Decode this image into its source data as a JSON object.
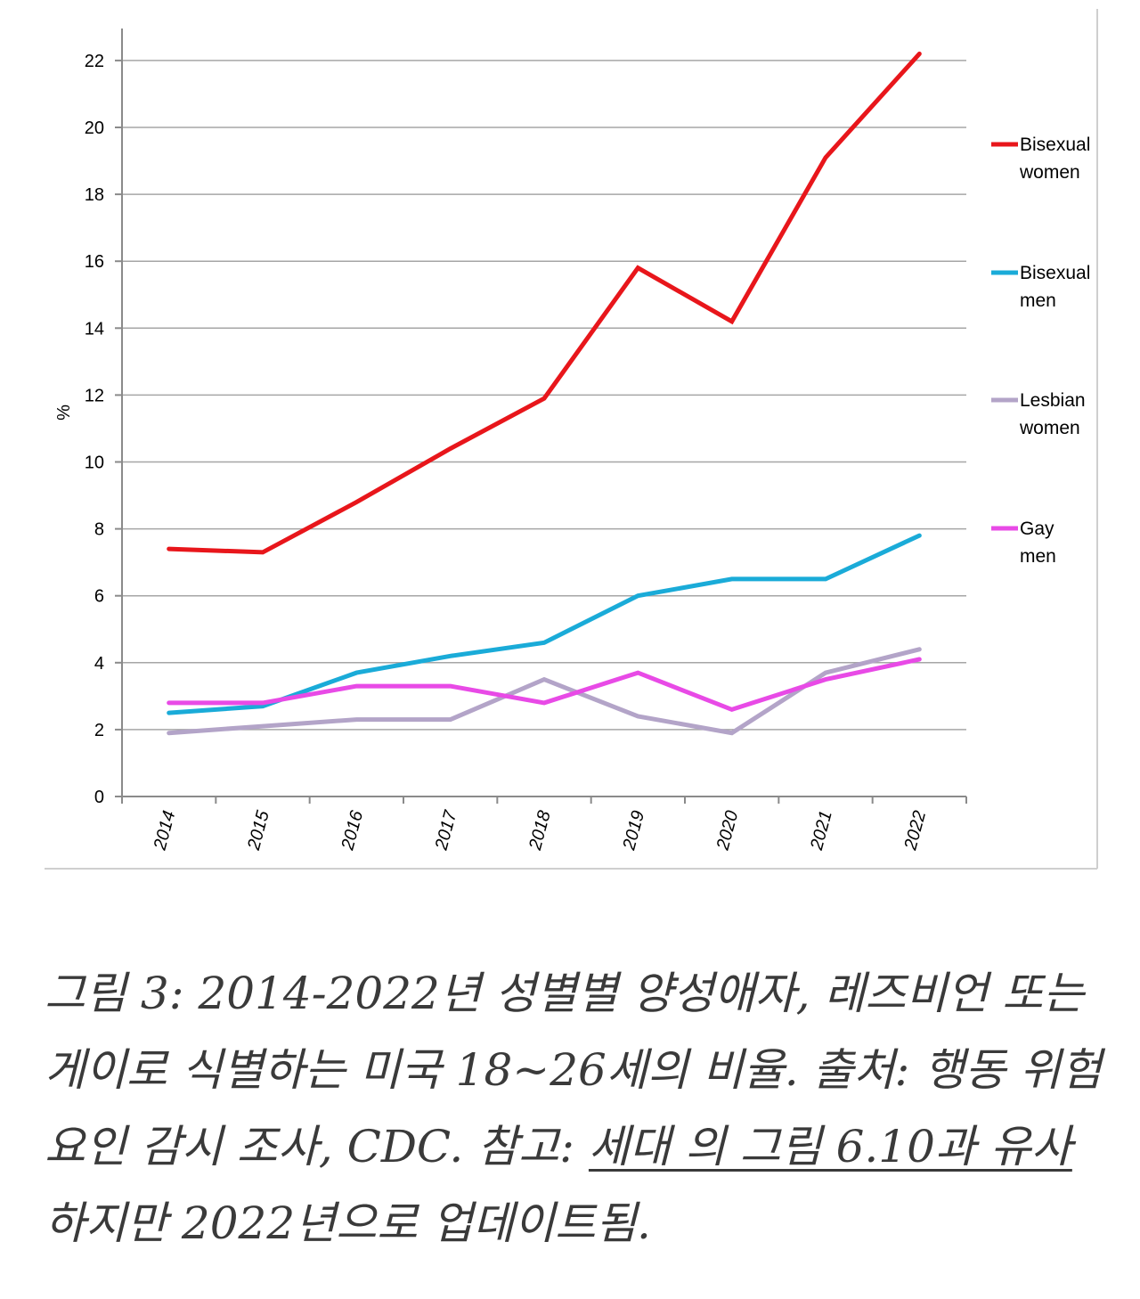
{
  "chart_data": {
    "type": "line",
    "title": "",
    "xlabel": "",
    "ylabel": "%",
    "ylim": [
      0,
      23
    ],
    "y_ticks": [
      "0",
      "2",
      "4",
      "6",
      "8",
      "10",
      "12",
      "14",
      "16",
      "18",
      "20",
      "22"
    ],
    "y_tick_values": [
      0,
      2,
      4,
      6,
      8,
      10,
      12,
      14,
      16,
      18,
      20,
      22
    ],
    "categories": [
      "2014",
      "2015",
      "2016",
      "2017",
      "2018",
      "2019",
      "2020",
      "2021",
      "2022"
    ],
    "grid": true,
    "legend_position": "right",
    "series": [
      {
        "name": "Bisexual women",
        "legend_lines": [
          "Bisexual",
          "women"
        ],
        "color": "#e8161b",
        "values": [
          7.4,
          7.3,
          8.8,
          10.4,
          11.9,
          15.8,
          14.2,
          19.1,
          22.2
        ]
      },
      {
        "name": "Bisexual men",
        "legend_lines": [
          "Bisexual",
          "men"
        ],
        "color": "#1aabd8",
        "values": [
          2.5,
          2.7,
          3.7,
          4.2,
          4.6,
          6.0,
          6.5,
          6.5,
          7.8
        ]
      },
      {
        "name": "Lesbian women",
        "legend_lines": [
          "Lesbian",
          "women"
        ],
        "color": "#b3a4c8",
        "values": [
          1.9,
          2.1,
          2.3,
          2.3,
          3.5,
          2.4,
          1.9,
          3.7,
          4.4
        ]
      },
      {
        "name": "Gay men",
        "legend_lines": [
          "Gay",
          "men"
        ],
        "color": "#e84ae6",
        "values": [
          2.8,
          2.8,
          3.3,
          3.3,
          2.8,
          3.7,
          2.6,
          3.5,
          4.1
        ]
      }
    ]
  },
  "caption": {
    "text_before": "그림 3: 2014-2022년 성별별 양성애자, 레즈비언 또는 게이로 식별하는 미국 18~26세의 비율. 출처: 행동 위험 요인 감시 조사, CDC. 참고: ",
    "link_text": "세대 의 그림 6.10과 유사 ",
    "text_after": "하지만 2022년으로 업데이트됨."
  }
}
